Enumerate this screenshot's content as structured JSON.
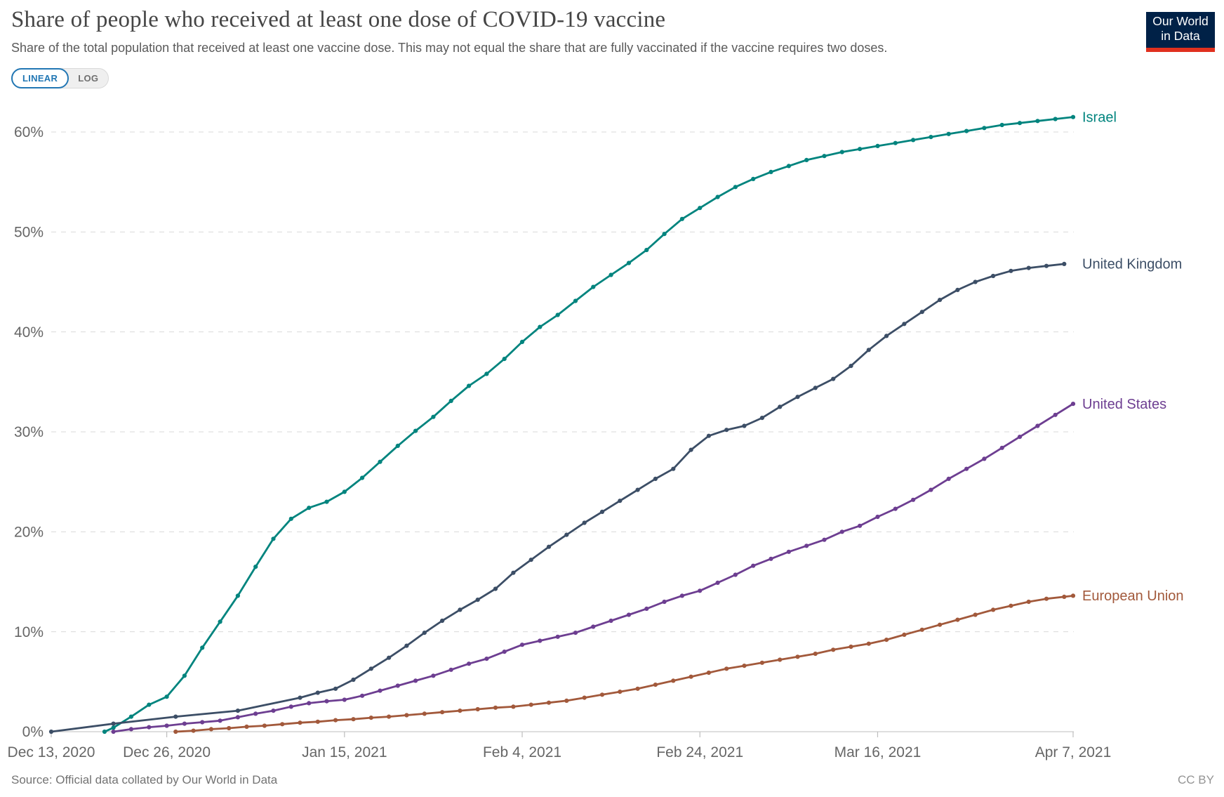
{
  "header": {
    "title": "Share of people who received at least one dose of COVID-19 vaccine",
    "subtitle": "Share of the total population that received at least one vaccine dose. This may not equal the share that are fully vaccinated if the vaccine requires two doses."
  },
  "logo": {
    "line1": "Our World",
    "line2": "in Data",
    "bg_color": "#002147",
    "bar_color": "#E0301E"
  },
  "scale_toggle": {
    "linear_label": "LINEAR",
    "log_label": "LOG",
    "active": "LINEAR",
    "active_color": "#2277B4"
  },
  "footer": {
    "source": "Source: Official data collated by Our World in Data",
    "license": "CC BY"
  },
  "chart_data": {
    "type": "line",
    "title": "Share of people who received at least one dose of COVID-19 vaccine",
    "x_unit": "days since Dec 13, 2020",
    "x_range_days": [
      0,
      115
    ],
    "ylim": [
      0,
      62
    ],
    "grid": "dashed horizontal gridlines",
    "legend_position": "labels at line ends (right)",
    "x_ticks": [
      {
        "day": 0,
        "label": "Dec 13, 2020"
      },
      {
        "day": 13,
        "label": "Dec 26, 2020"
      },
      {
        "day": 33,
        "label": "Jan 15, 2021"
      },
      {
        "day": 53,
        "label": "Feb 4, 2021"
      },
      {
        "day": 73,
        "label": "Feb 24, 2021"
      },
      {
        "day": 93,
        "label": "Mar 16, 2021"
      },
      {
        "day": 115,
        "label": "Apr 7, 2021"
      }
    ],
    "y_ticks": [
      {
        "value": 0,
        "label": "0%"
      },
      {
        "value": 10,
        "label": "10%"
      },
      {
        "value": 20,
        "label": "20%"
      },
      {
        "value": 30,
        "label": "30%"
      },
      {
        "value": 40,
        "label": "40%"
      },
      {
        "value": 50,
        "label": "50%"
      },
      {
        "value": 60,
        "label": "60%"
      }
    ],
    "series": [
      {
        "name": "Israel",
        "color": "#00847E",
        "points": [
          [
            6,
            0
          ],
          [
            7,
            0.4
          ],
          [
            9,
            1.5
          ],
          [
            11,
            2.7
          ],
          [
            13,
            3.5
          ],
          [
            15,
            5.6
          ],
          [
            17,
            8.4
          ],
          [
            19,
            11
          ],
          [
            21,
            13.6
          ],
          [
            23,
            16.5
          ],
          [
            25,
            19.3
          ],
          [
            27,
            21.3
          ],
          [
            29,
            22.4
          ],
          [
            31,
            23
          ],
          [
            33,
            24
          ],
          [
            35,
            25.4
          ],
          [
            37,
            27
          ],
          [
            39,
            28.6
          ],
          [
            41,
            30.1
          ],
          [
            43,
            31.5
          ],
          [
            45,
            33.1
          ],
          [
            47,
            34.6
          ],
          [
            49,
            35.8
          ],
          [
            51,
            37.3
          ],
          [
            53,
            39
          ],
          [
            55,
            40.5
          ],
          [
            57,
            41.7
          ],
          [
            59,
            43.1
          ],
          [
            61,
            44.5
          ],
          [
            63,
            45.7
          ],
          [
            65,
            46.9
          ],
          [
            67,
            48.2
          ],
          [
            69,
            49.8
          ],
          [
            71,
            51.3
          ],
          [
            73,
            52.4
          ],
          [
            75,
            53.5
          ],
          [
            77,
            54.5
          ],
          [
            79,
            55.3
          ],
          [
            81,
            56
          ],
          [
            83,
            56.6
          ],
          [
            85,
            57.2
          ],
          [
            87,
            57.6
          ],
          [
            89,
            58
          ],
          [
            91,
            58.3
          ],
          [
            93,
            58.6
          ],
          [
            95,
            58.9
          ],
          [
            97,
            59.2
          ],
          [
            99,
            59.5
          ],
          [
            101,
            59.8
          ],
          [
            103,
            60.1
          ],
          [
            105,
            60.4
          ],
          [
            107,
            60.7
          ],
          [
            109,
            60.9
          ],
          [
            111,
            61.1
          ],
          [
            113,
            61.3
          ],
          [
            115,
            61.5
          ]
        ]
      },
      {
        "name": "United Kingdom",
        "color": "#3C4E66",
        "points": [
          [
            0,
            0
          ],
          [
            7,
            0.8
          ],
          [
            14,
            1.5
          ],
          [
            21,
            2.1
          ],
          [
            28,
            3.4
          ],
          [
            30,
            3.9
          ],
          [
            32,
            4.3
          ],
          [
            34,
            5.2
          ],
          [
            36,
            6.3
          ],
          [
            38,
            7.4
          ],
          [
            40,
            8.6
          ],
          [
            42,
            9.9
          ],
          [
            44,
            11.1
          ],
          [
            46,
            12.2
          ],
          [
            48,
            13.2
          ],
          [
            50,
            14.3
          ],
          [
            52,
            15.9
          ],
          [
            54,
            17.2
          ],
          [
            56,
            18.5
          ],
          [
            58,
            19.7
          ],
          [
            60,
            20.9
          ],
          [
            62,
            22
          ],
          [
            64,
            23.1
          ],
          [
            66,
            24.2
          ],
          [
            68,
            25.3
          ],
          [
            70,
            26.3
          ],
          [
            72,
            28.2
          ],
          [
            74,
            29.6
          ],
          [
            76,
            30.2
          ],
          [
            78,
            30.6
          ],
          [
            80,
            31.4
          ],
          [
            82,
            32.5
          ],
          [
            84,
            33.5
          ],
          [
            86,
            34.4
          ],
          [
            88,
            35.3
          ],
          [
            90,
            36.6
          ],
          [
            92,
            38.2
          ],
          [
            94,
            39.6
          ],
          [
            96,
            40.8
          ],
          [
            98,
            42
          ],
          [
            100,
            43.2
          ],
          [
            102,
            44.2
          ],
          [
            104,
            45
          ],
          [
            106,
            45.6
          ],
          [
            108,
            46.1
          ],
          [
            110,
            46.4
          ],
          [
            112,
            46.6
          ],
          [
            114,
            46.8
          ]
        ]
      },
      {
        "name": "United States",
        "color": "#6D3E91",
        "points": [
          [
            7,
            0
          ],
          [
            9,
            0.25
          ],
          [
            11,
            0.45
          ],
          [
            13,
            0.6
          ],
          [
            15,
            0.8
          ],
          [
            17,
            0.95
          ],
          [
            19,
            1.1
          ],
          [
            21,
            1.45
          ],
          [
            23,
            1.8
          ],
          [
            25,
            2.1
          ],
          [
            27,
            2.5
          ],
          [
            29,
            2.85
          ],
          [
            31,
            3.05
          ],
          [
            33,
            3.2
          ],
          [
            35,
            3.6
          ],
          [
            37,
            4.1
          ],
          [
            39,
            4.6
          ],
          [
            41,
            5.1
          ],
          [
            43,
            5.6
          ],
          [
            45,
            6.2
          ],
          [
            47,
            6.8
          ],
          [
            49,
            7.3
          ],
          [
            51,
            8
          ],
          [
            53,
            8.7
          ],
          [
            55,
            9.1
          ],
          [
            57,
            9.5
          ],
          [
            59,
            9.9
          ],
          [
            61,
            10.5
          ],
          [
            63,
            11.1
          ],
          [
            65,
            11.7
          ],
          [
            67,
            12.3
          ],
          [
            69,
            13
          ],
          [
            71,
            13.6
          ],
          [
            73,
            14.1
          ],
          [
            75,
            14.9
          ],
          [
            77,
            15.7
          ],
          [
            79,
            16.6
          ],
          [
            81,
            17.3
          ],
          [
            83,
            18
          ],
          [
            85,
            18.6
          ],
          [
            87,
            19.2
          ],
          [
            89,
            20
          ],
          [
            91,
            20.6
          ],
          [
            93,
            21.5
          ],
          [
            95,
            22.3
          ],
          [
            97,
            23.2
          ],
          [
            99,
            24.2
          ],
          [
            101,
            25.3
          ],
          [
            103,
            26.3
          ],
          [
            105,
            27.3
          ],
          [
            107,
            28.4
          ],
          [
            109,
            29.5
          ],
          [
            111,
            30.6
          ],
          [
            113,
            31.7
          ],
          [
            115,
            32.8
          ]
        ]
      },
      {
        "name": "European Union",
        "color": "#A2593B",
        "points": [
          [
            14,
            0
          ],
          [
            16,
            0.1
          ],
          [
            18,
            0.25
          ],
          [
            20,
            0.35
          ],
          [
            22,
            0.5
          ],
          [
            24,
            0.6
          ],
          [
            26,
            0.75
          ],
          [
            28,
            0.9
          ],
          [
            30,
            1
          ],
          [
            32,
            1.15
          ],
          [
            34,
            1.25
          ],
          [
            36,
            1.4
          ],
          [
            38,
            1.5
          ],
          [
            40,
            1.65
          ],
          [
            42,
            1.8
          ],
          [
            44,
            1.95
          ],
          [
            46,
            2.1
          ],
          [
            48,
            2.25
          ],
          [
            50,
            2.4
          ],
          [
            52,
            2.5
          ],
          [
            54,
            2.7
          ],
          [
            56,
            2.9
          ],
          [
            58,
            3.1
          ],
          [
            60,
            3.4
          ],
          [
            62,
            3.7
          ],
          [
            64,
            4
          ],
          [
            66,
            4.3
          ],
          [
            68,
            4.7
          ],
          [
            70,
            5.1
          ],
          [
            72,
            5.5
          ],
          [
            74,
            5.9
          ],
          [
            76,
            6.3
          ],
          [
            78,
            6.6
          ],
          [
            80,
            6.9
          ],
          [
            82,
            7.2
          ],
          [
            84,
            7.5
          ],
          [
            86,
            7.8
          ],
          [
            88,
            8.2
          ],
          [
            90,
            8.5
          ],
          [
            92,
            8.8
          ],
          [
            94,
            9.2
          ],
          [
            96,
            9.7
          ],
          [
            98,
            10.2
          ],
          [
            100,
            10.7
          ],
          [
            102,
            11.2
          ],
          [
            104,
            11.7
          ],
          [
            106,
            12.2
          ],
          [
            108,
            12.6
          ],
          [
            110,
            13
          ],
          [
            112,
            13.3
          ],
          [
            114,
            13.5
          ],
          [
            115,
            13.6
          ]
        ]
      }
    ]
  }
}
